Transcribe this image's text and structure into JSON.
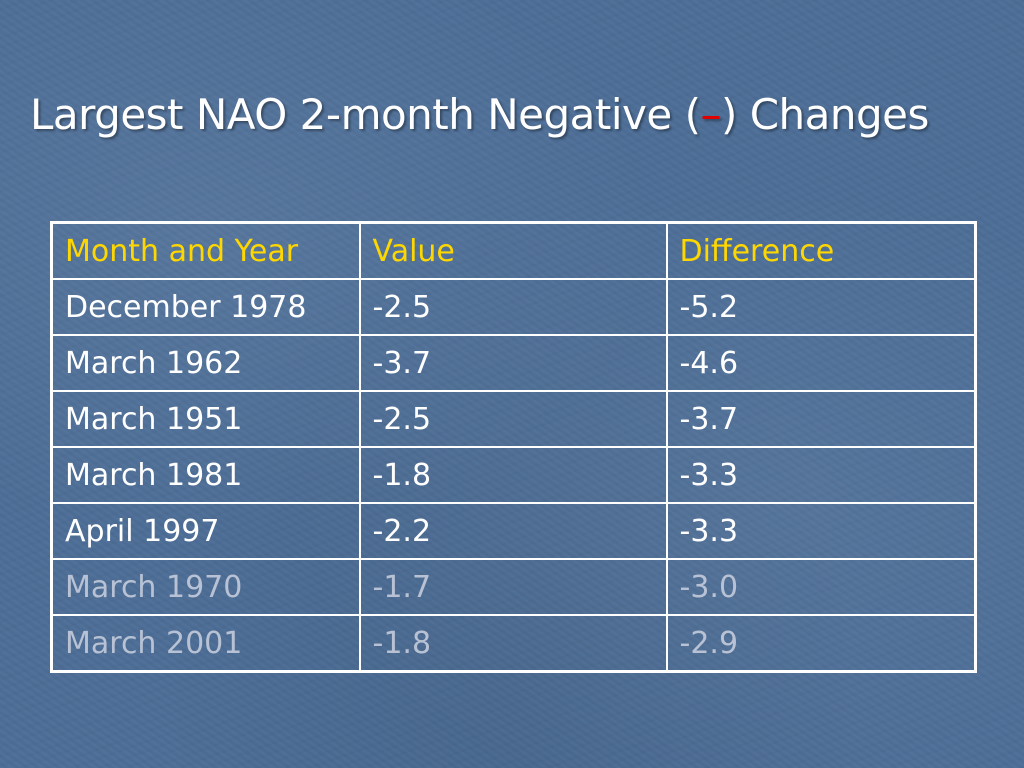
{
  "slide": {
    "title_before": "Largest NAO 2-month Negative (",
    "title_dash": "–",
    "title_after": ") Changes"
  },
  "table": {
    "headers": [
      "Month and Year",
      "Value",
      "Difference"
    ],
    "rows": [
      [
        "December 1978",
        "-2.5",
        "-5.2"
      ],
      [
        "March 1962",
        "-3.7",
        "-4.6"
      ],
      [
        "March 1951",
        "-2.5",
        "-3.7"
      ],
      [
        "March 1981",
        "-1.8",
        "-3.3"
      ],
      [
        "April 1997",
        "-2.2",
        "-3.3"
      ],
      [
        "March 1970",
        "-1.7",
        "-3.0"
      ],
      [
        "March 2001",
        "-1.8",
        "-2.9"
      ]
    ]
  },
  "colors": {
    "background": "#4d6e97",
    "title": "#ffffff",
    "dash": "#e00000",
    "header_text": "#ffd700",
    "body_text": "#ffffff",
    "dim_text": "#b8c2d4",
    "border": "#ffffff"
  }
}
